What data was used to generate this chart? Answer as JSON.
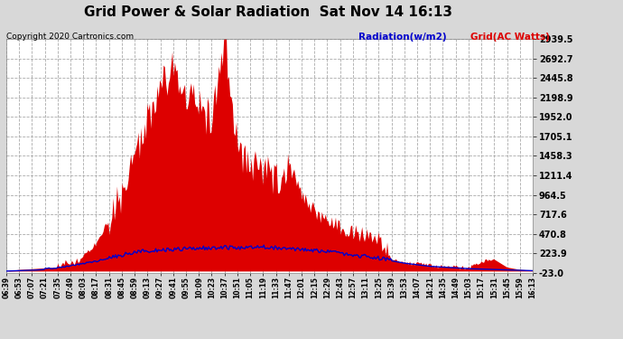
{
  "title": "Grid Power & Solar Radiation  Sat Nov 14 16:13",
  "copyright": "Copyright 2020 Cartronics.com",
  "legend_radiation": "Radiation(w/m2)",
  "legend_grid": "Grid(AC Watts)",
  "yticks": [
    -23.0,
    223.9,
    470.8,
    717.6,
    964.5,
    1211.4,
    1458.3,
    1705.1,
    1952.0,
    2198.9,
    2445.8,
    2692.7,
    2939.5
  ],
  "ymin": -23.0,
  "ymax": 2939.5,
  "bg_color": "#d8d8d8",
  "plot_bg_color": "#ffffff",
  "grid_color": "#aaaaaa",
  "red_color": "#dd0000",
  "blue_color": "#0000cc",
  "title_color": "#000000",
  "copyright_color": "#000000",
  "xtick_labels": [
    "06:39",
    "06:53",
    "07:07",
    "07:21",
    "07:35",
    "07:49",
    "08:03",
    "08:17",
    "08:31",
    "08:45",
    "08:59",
    "09:13",
    "09:27",
    "09:41",
    "09:55",
    "10:09",
    "10:23",
    "10:37",
    "10:51",
    "11:05",
    "11:19",
    "11:33",
    "11:47",
    "12:01",
    "12:15",
    "12:29",
    "12:43",
    "12:57",
    "13:11",
    "13:25",
    "13:39",
    "13:53",
    "14:07",
    "14:21",
    "14:35",
    "14:49",
    "15:03",
    "15:17",
    "15:31",
    "15:45",
    "15:59",
    "16:13"
  ]
}
